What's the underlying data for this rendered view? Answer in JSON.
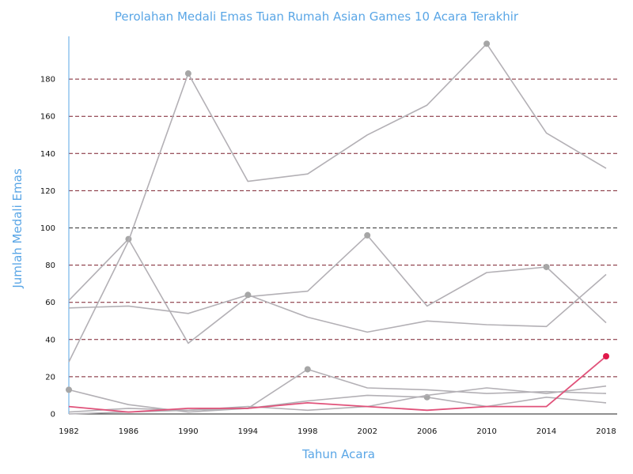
{
  "chart_data": {
    "type": "line",
    "title": "Perolahan Medali Emas Tuan Rumah Asian Games 10 Acara Terakhir",
    "xlabel": "Tahun Acara",
    "ylabel": "Jumlah Medali Emas",
    "categories": [
      "1982",
      "1986",
      "1990",
      "1994",
      "1998",
      "2002",
      "2006",
      "2010",
      "2014",
      "2018"
    ],
    "yticks": [
      "0",
      "20",
      "40",
      "60",
      "80",
      "100",
      "120",
      "140",
      "160",
      "180"
    ],
    "ylim": [
      0,
      200
    ],
    "grid": true,
    "colors": {
      "default_line": "#b3b0b5",
      "highlight_line": "#e0527a",
      "highlight_marker": "#e0194a",
      "marker": "#a6a6a6",
      "grid": "#7a1f2b",
      "grid_emphasis": "#333333",
      "axis": "#5aa6e6",
      "title": "#5aa6e6"
    },
    "series": [
      {
        "values": [
          61,
          94,
          38,
          63,
          66,
          96,
          58,
          76,
          79,
          49
        ],
        "highlight": false,
        "markers": [
          1,
          5,
          8
        ]
      },
      {
        "values": [
          28,
          93,
          183,
          125,
          129,
          150,
          166,
          199,
          151,
          132
        ],
        "highlight": false,
        "markers": [
          2,
          7
        ]
      },
      {
        "values": [
          57,
          58,
          54,
          64,
          52,
          44,
          50,
          48,
          47,
          75
        ],
        "highlight": false,
        "markers": [
          3
        ]
      },
      {
        "values": [
          13,
          5,
          1,
          3,
          24,
          14,
          13,
          11,
          12,
          11
        ],
        "highlight": false,
        "markers": [
          0,
          4
        ]
      },
      {
        "values": [
          1,
          3,
          2,
          3,
          7,
          10,
          9,
          4,
          9,
          6
        ],
        "highlight": false,
        "markers": [
          6
        ]
      },
      {
        "values": [
          0,
          1,
          2,
          4,
          2,
          4,
          10,
          14,
          11,
          15
        ],
        "highlight": false,
        "markers": []
      },
      {
        "values": [
          4,
          1,
          3,
          3,
          6,
          4,
          2,
          4,
          4,
          31
        ],
        "highlight": true,
        "markers": [
          9
        ]
      }
    ]
  }
}
